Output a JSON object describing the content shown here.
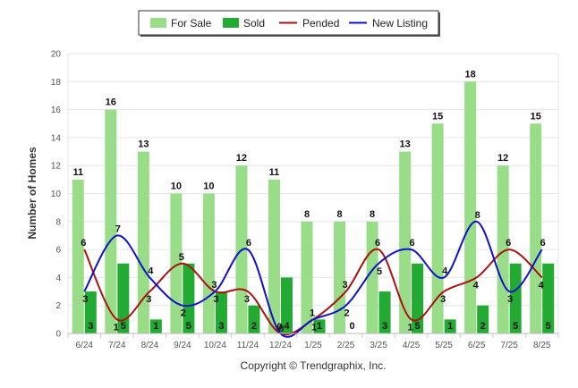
{
  "chart_data": {
    "type": "bar",
    "ylabel": "Number of Homes",
    "xlabel": "",
    "ylim": [
      0,
      20
    ],
    "yticks": [
      0,
      2,
      4,
      6,
      8,
      10,
      12,
      14,
      16,
      18,
      20
    ],
    "grid": true,
    "legend_position": "top-center",
    "categories": [
      "6/24",
      "7/24",
      "8/24",
      "9/24",
      "10/24",
      "11/24",
      "12/24",
      "1/25",
      "2/25",
      "3/25",
      "4/25",
      "5/25",
      "6/25",
      "7/25",
      "8/25"
    ],
    "series": [
      {
        "name": "For Sale",
        "kind": "bar",
        "color": "#99dd88",
        "values": [
          11,
          16,
          13,
          10,
          10,
          12,
          11,
          8,
          8,
          8,
          13,
          15,
          18,
          12,
          15
        ]
      },
      {
        "name": "Sold",
        "kind": "bar",
        "color": "#22aa33",
        "values": [
          3,
          5,
          1,
          5,
          3,
          2,
          4,
          1,
          0,
          3,
          5,
          1,
          2,
          5,
          5
        ]
      },
      {
        "name": "Pended",
        "kind": "line",
        "color": "#aa1111",
        "values": [
          6,
          1,
          3,
          5,
          3,
          3,
          0,
          1,
          3,
          6,
          1,
          3,
          4,
          6,
          4
        ]
      },
      {
        "name": "New Listing",
        "kind": "line",
        "color": "#1111cc",
        "values": [
          3,
          7,
          4,
          2,
          3,
          6,
          0,
          1,
          2,
          5,
          6,
          4,
          8,
          3,
          6
        ]
      }
    ]
  },
  "footer": {
    "copyright": "Copyright © Trendgraphix, Inc."
  }
}
